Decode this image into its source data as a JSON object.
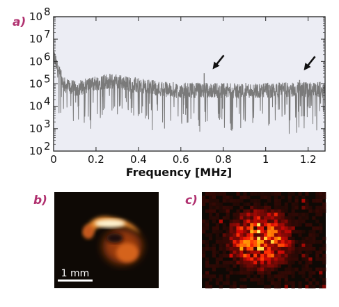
{
  "panels": {
    "a": "a)",
    "b": "b)",
    "c": "c)"
  },
  "scale_bar": {
    "label": "1 mm"
  },
  "colors": {
    "plot_background": "#ecedf4",
    "trace": "#7a7a7a",
    "panel_letter": "#b0306f",
    "heatmap_low": "#0e0905",
    "heatmap_high": "#fff6d8"
  },
  "chart_data": [
    {
      "type": "line",
      "panel": "a",
      "xlabel": "Frequency [MHz]",
      "ylabel": "",
      "xlim": [
        0,
        1.28
      ],
      "ylim": [
        100,
        100000000
      ],
      "yscale": "log",
      "grid": false,
      "x_ticks": [
        {
          "value": 0,
          "label": "0"
        },
        {
          "value": 0.2,
          "label": "0.2"
        },
        {
          "value": 0.4,
          "label": "0.4"
        },
        {
          "value": 0.6,
          "label": "0.6"
        },
        {
          "value": 0.8,
          "label": "0.8"
        },
        {
          "value": 1.0,
          "label": "1"
        },
        {
          "value": 1.2,
          "label": "1.2"
        }
      ],
      "y_ticks": [
        {
          "value": 100,
          "base": "10",
          "exp": "2"
        },
        {
          "value": 1000,
          "base": "10",
          "exp": "3"
        },
        {
          "value": 10000,
          "base": "10",
          "exp": "4"
        },
        {
          "value": 100000,
          "base": "10",
          "exp": "5"
        },
        {
          "value": 1000000,
          "base": "10",
          "exp": "6"
        },
        {
          "value": 10000000,
          "base": "10",
          "exp": "7"
        },
        {
          "value": 100000000,
          "base": "10",
          "exp": "8"
        }
      ],
      "series": [
        {
          "x": [
            0.0,
            0.02,
            0.05,
            0.1,
            0.15,
            0.2,
            0.25,
            0.3,
            0.35,
            0.4,
            0.45,
            0.5,
            0.55,
            0.6,
            0.65,
            0.7,
            0.75,
            0.8,
            0.85,
            0.9,
            0.95,
            1.0,
            1.05,
            1.1,
            1.15,
            1.2,
            1.25,
            1.28
          ],
          "y": [
            2000000,
            400000,
            90000,
            60000,
            80000,
            110000,
            130000,
            120000,
            100000,
            80000,
            70000,
            60000,
            55000,
            50000,
            52000,
            50000,
            52000,
            50000,
            48000,
            50000,
            50000,
            50000,
            52000,
            55000,
            55000,
            55000,
            55000,
            55000
          ]
        }
      ],
      "peaks": [
        {
          "x": 0.71,
          "y": 300000
        },
        {
          "x": 1.16,
          "y": 150000
        }
      ],
      "annotations": [
        {
          "type": "arrow",
          "target_x": 0.75,
          "target_y": 450000
        },
        {
          "type": "arrow",
          "target_x": 1.18,
          "target_y": 400000
        }
      ]
    },
    {
      "type": "heatmap",
      "panel": "b",
      "colormap": "afmhot",
      "scale_bar": "1 mm"
    },
    {
      "type": "heatmap",
      "panel": "c",
      "colormap": "afmhot"
    }
  ]
}
